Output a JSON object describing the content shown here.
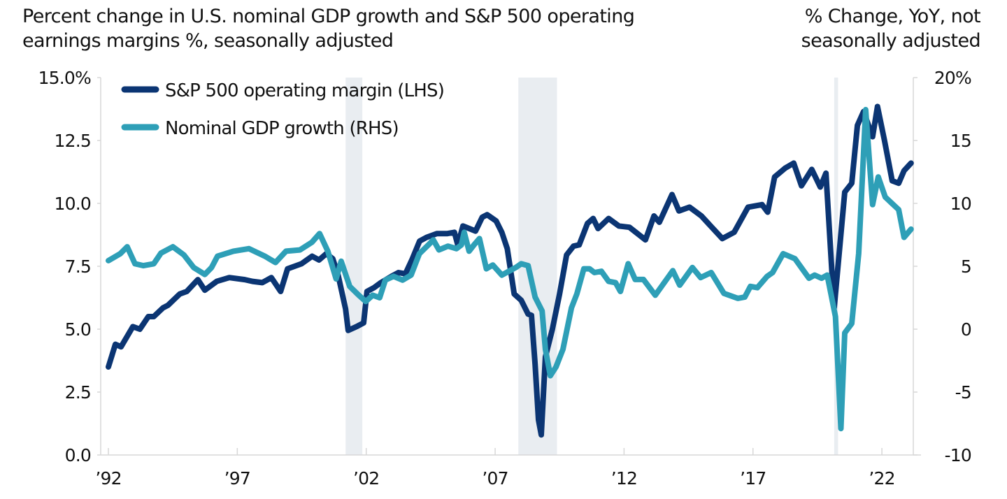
{
  "header": {
    "title_line1": "Percent change in U.S. nominal GDP growth and S&P 500 operating",
    "title_line2": "earnings margins %, seasonally adjusted",
    "right_note_line1": "% Change, YoY, not",
    "right_note_line2": "seasonally adjusted"
  },
  "chart_data": {
    "type": "line",
    "title": "Percent change in U.S. nominal GDP growth and S&P 500 operating earnings margins %, seasonally adjusted",
    "xlabel": "",
    "ylabel_left": "",
    "ylabel_right": "% Change, YoY, not seasonally adjusted",
    "xlim": [
      1992,
      2023.2
    ],
    "ylim_left": [
      0,
      15
    ],
    "ylim_right": [
      -10,
      20
    ],
    "x_ticks": [
      1992,
      1997,
      2002,
      2007,
      2012,
      2017,
      2022
    ],
    "x_tick_labels": [
      "’92",
      "’97",
      "’02",
      "’07",
      "’12",
      "’17",
      "’22"
    ],
    "y_left_ticks": [
      0,
      2.5,
      5,
      7.5,
      10,
      12.5,
      15
    ],
    "y_left_tick_labels": [
      "0.0",
      "2.5",
      "5.0",
      "7.5",
      "10.0",
      "12.5",
      "15.0%"
    ],
    "y_right_ticks": [
      -10,
      -5,
      0,
      5,
      10,
      15,
      20
    ],
    "y_right_tick_labels": [
      "-10",
      "-5",
      "0",
      "5",
      "10",
      "15",
      "20%"
    ],
    "grid": false,
    "legend_position": "top-left",
    "recessions": [
      {
        "start": 2001.2,
        "end": 2001.85
      },
      {
        "start": 2007.9,
        "end": 2009.4
      },
      {
        "start": 2020.15,
        "end": 2020.3
      }
    ],
    "series": [
      {
        "name": "S&P 500 operating margin (LHS)",
        "axis": "left",
        "color": "#0B3573",
        "points": [
          [
            1992.0,
            3.5
          ],
          [
            1992.27,
            4.4
          ],
          [
            1992.49,
            4.3
          ],
          [
            1992.95,
            5.1
          ],
          [
            1993.22,
            5.0
          ],
          [
            1993.55,
            5.5
          ],
          [
            1993.76,
            5.5
          ],
          [
            1994.12,
            5.85
          ],
          [
            1994.31,
            5.95
          ],
          [
            1994.77,
            6.4
          ],
          [
            1995.04,
            6.5
          ],
          [
            1995.47,
            6.97
          ],
          [
            1995.74,
            6.55
          ],
          [
            1996.2,
            6.9
          ],
          [
            1996.69,
            7.05
          ],
          [
            1997.29,
            6.97
          ],
          [
            1997.59,
            6.9
          ],
          [
            1997.97,
            6.85
          ],
          [
            1998.32,
            7.05
          ],
          [
            1998.68,
            6.5
          ],
          [
            1998.95,
            7.4
          ],
          [
            1999.49,
            7.6
          ],
          [
            1999.9,
            7.9
          ],
          [
            2000.17,
            7.75
          ],
          [
            2000.45,
            8.0
          ],
          [
            2000.7,
            7.8
          ],
          [
            2000.9,
            7.2
          ],
          [
            2001.2,
            5.8
          ],
          [
            2001.3,
            4.95
          ],
          [
            2001.62,
            5.1
          ],
          [
            2001.9,
            5.25
          ],
          [
            2002.03,
            6.5
          ],
          [
            2002.3,
            6.65
          ],
          [
            2002.57,
            6.85
          ],
          [
            2002.98,
            7.1
          ],
          [
            2003.25,
            7.25
          ],
          [
            2003.52,
            7.2
          ],
          [
            2003.79,
            7.8
          ],
          [
            2004.07,
            8.5
          ],
          [
            2004.34,
            8.65
          ],
          [
            2004.74,
            8.8
          ],
          [
            2005.15,
            8.8
          ],
          [
            2005.42,
            8.85
          ],
          [
            2005.55,
            8.35
          ],
          [
            2005.75,
            9.1
          ],
          [
            2006.24,
            8.9
          ],
          [
            2006.5,
            9.45
          ],
          [
            2006.69,
            9.55
          ],
          [
            2007.04,
            9.3
          ],
          [
            2007.26,
            8.85
          ],
          [
            2007.47,
            8.2
          ],
          [
            2007.74,
            6.4
          ],
          [
            2008.01,
            6.15
          ],
          [
            2008.28,
            5.6
          ],
          [
            2008.41,
            5.55
          ],
          [
            2008.55,
            3.6
          ],
          [
            2008.68,
            1.4
          ],
          [
            2008.79,
            0.8
          ],
          [
            2008.95,
            3.9
          ],
          [
            2009.22,
            5.0
          ],
          [
            2009.5,
            6.4
          ],
          [
            2009.77,
            7.95
          ],
          [
            2010.04,
            8.3
          ],
          [
            2010.26,
            8.35
          ],
          [
            2010.58,
            9.2
          ],
          [
            2010.8,
            9.4
          ],
          [
            2010.99,
            9.0
          ],
          [
            2011.4,
            9.4
          ],
          [
            2011.8,
            9.1
          ],
          [
            2012.21,
            9.05
          ],
          [
            2012.83,
            8.55
          ],
          [
            2013.16,
            9.5
          ],
          [
            2013.37,
            9.25
          ],
          [
            2013.86,
            10.35
          ],
          [
            2014.13,
            9.7
          ],
          [
            2014.54,
            9.85
          ],
          [
            2015.0,
            9.5
          ],
          [
            2015.81,
            8.6
          ],
          [
            2016.27,
            8.85
          ],
          [
            2016.81,
            9.85
          ],
          [
            2017.35,
            9.95
          ],
          [
            2017.57,
            9.65
          ],
          [
            2017.84,
            11.05
          ],
          [
            2018.25,
            11.4
          ],
          [
            2018.58,
            11.6
          ],
          [
            2018.88,
            10.7
          ],
          [
            2019.28,
            11.35
          ],
          [
            2019.61,
            10.65
          ],
          [
            2019.83,
            11.2
          ],
          [
            2020.07,
            7.15
          ],
          [
            2020.15,
            5.85
          ],
          [
            2020.56,
            10.45
          ],
          [
            2020.83,
            10.8
          ],
          [
            2021.05,
            13.1
          ],
          [
            2021.29,
            13.65
          ],
          [
            2021.64,
            12.65
          ],
          [
            2021.83,
            13.85
          ],
          [
            2022.1,
            12.5
          ],
          [
            2022.4,
            10.9
          ],
          [
            2022.65,
            10.8
          ],
          [
            2022.86,
            11.3
          ],
          [
            2023.13,
            11.6
          ]
        ]
      },
      {
        "name": "Nominal GDP growth (RHS)",
        "axis": "right",
        "color": "#2E9FB7",
        "points": [
          [
            1992.0,
            5.45
          ],
          [
            1992.46,
            6.0
          ],
          [
            1992.73,
            6.55
          ],
          [
            1993.03,
            5.2
          ],
          [
            1993.36,
            5.05
          ],
          [
            1993.76,
            5.2
          ],
          [
            1994.04,
            6.05
          ],
          [
            1994.5,
            6.55
          ],
          [
            1994.93,
            5.9
          ],
          [
            1995.31,
            4.9
          ],
          [
            1995.74,
            4.35
          ],
          [
            1996.0,
            4.9
          ],
          [
            1996.23,
            5.8
          ],
          [
            1996.85,
            6.2
          ],
          [
            1997.45,
            6.4
          ],
          [
            1998.07,
            5.8
          ],
          [
            1998.48,
            5.3
          ],
          [
            1998.89,
            6.2
          ],
          [
            1999.43,
            6.3
          ],
          [
            1999.89,
            6.9
          ],
          [
            2000.19,
            7.6
          ],
          [
            2000.51,
            6.2
          ],
          [
            2000.83,
            4.0
          ],
          [
            2001.03,
            5.4
          ],
          [
            2001.36,
            3.4
          ],
          [
            2001.71,
            2.7
          ],
          [
            2001.98,
            2.2
          ],
          [
            2002.25,
            2.7
          ],
          [
            2002.52,
            2.5
          ],
          [
            2002.74,
            3.9
          ],
          [
            2003.06,
            4.2
          ],
          [
            2003.41,
            3.9
          ],
          [
            2003.74,
            4.3
          ],
          [
            2004.06,
            6.0
          ],
          [
            2004.41,
            6.7
          ],
          [
            2004.6,
            7.1
          ],
          [
            2004.82,
            6.3
          ],
          [
            2005.17,
            6.6
          ],
          [
            2005.5,
            6.4
          ],
          [
            2005.69,
            6.7
          ],
          [
            2005.8,
            7.7
          ],
          [
            2005.99,
            6.2
          ],
          [
            2006.18,
            6.7
          ],
          [
            2006.39,
            7.2
          ],
          [
            2006.66,
            4.8
          ],
          [
            2006.91,
            5.1
          ],
          [
            2007.26,
            4.3
          ],
          [
            2007.53,
            4.6
          ],
          [
            2007.8,
            4.9
          ],
          [
            2008.01,
            5.2
          ],
          [
            2008.28,
            5.05
          ],
          [
            2008.55,
            2.55
          ],
          [
            2008.82,
            1.45
          ],
          [
            2008.95,
            -1.6
          ],
          [
            2009.14,
            -3.7
          ],
          [
            2009.36,
            -3.0
          ],
          [
            2009.63,
            -1.6
          ],
          [
            2009.96,
            1.7
          ],
          [
            2010.17,
            2.8
          ],
          [
            2010.44,
            4.8
          ],
          [
            2010.66,
            4.8
          ],
          [
            2010.85,
            4.5
          ],
          [
            2011.12,
            4.6
          ],
          [
            2011.4,
            3.8
          ],
          [
            2011.67,
            3.7
          ],
          [
            2011.86,
            3.0
          ],
          [
            2012.16,
            5.2
          ],
          [
            2012.43,
            3.95
          ],
          [
            2012.75,
            3.95
          ],
          [
            2013.21,
            2.7
          ],
          [
            2013.89,
            4.65
          ],
          [
            2014.16,
            3.5
          ],
          [
            2014.65,
            4.9
          ],
          [
            2014.97,
            4.1
          ],
          [
            2015.38,
            4.5
          ],
          [
            2015.87,
            2.85
          ],
          [
            2016.41,
            2.45
          ],
          [
            2016.68,
            2.55
          ],
          [
            2016.9,
            3.4
          ],
          [
            2017.17,
            3.3
          ],
          [
            2017.55,
            4.2
          ],
          [
            2017.76,
            4.5
          ],
          [
            2018.17,
            6.0
          ],
          [
            2018.63,
            5.6
          ],
          [
            2019.17,
            4.05
          ],
          [
            2019.39,
            4.3
          ],
          [
            2019.66,
            4.05
          ],
          [
            2019.88,
            4.3
          ],
          [
            2020.2,
            1.0
          ],
          [
            2020.41,
            -7.9
          ],
          [
            2020.56,
            -0.3
          ],
          [
            2020.83,
            0.45
          ],
          [
            2021.1,
            6.0
          ],
          [
            2021.37,
            17.45
          ],
          [
            2021.64,
            9.9
          ],
          [
            2021.86,
            12.1
          ],
          [
            2022.13,
            10.5
          ],
          [
            2022.65,
            9.5
          ],
          [
            2022.86,
            7.3
          ],
          [
            2023.13,
            7.95
          ]
        ]
      }
    ]
  }
}
